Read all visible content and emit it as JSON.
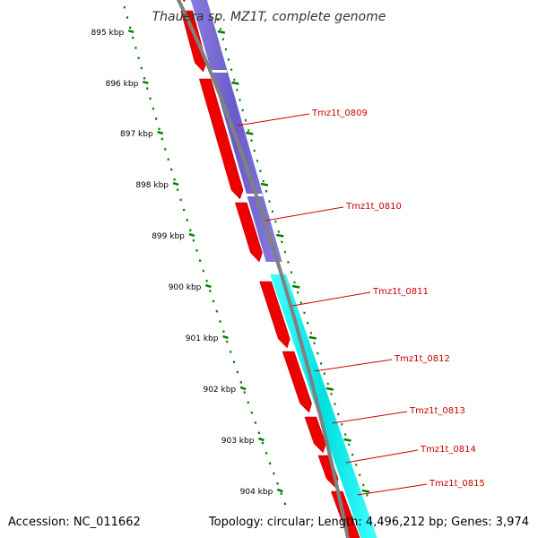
{
  "title": "Thauera sp. MZ1T, complete genome",
  "ticks": [
    "895 kbp",
    "896 kbp",
    "897 kbp",
    "898 kbp",
    "899 kbp",
    "900 kbp",
    "901 kbp",
    "902 kbp",
    "903 kbp",
    "904 kbp"
  ],
  "genes": [
    "Tmz1t_0809",
    "Tmz1t_0810",
    "Tmz1t_0811",
    "Tmz1t_0812",
    "Tmz1t_0813",
    "Tmz1t_0814",
    "Tmz1t_0815"
  ],
  "footer": {
    "accession": "Accession: NC_011662",
    "topology": "Topology: circular; Length: 4,496,212 bp; Genes: 3,974"
  },
  "colors": {
    "forward_cds": "#ee0000",
    "purple_track": "#7766cc",
    "cyan_track": "#00e5e5",
    "backbone": "#808080",
    "tick": "#008000",
    "label": "#cc0000"
  }
}
